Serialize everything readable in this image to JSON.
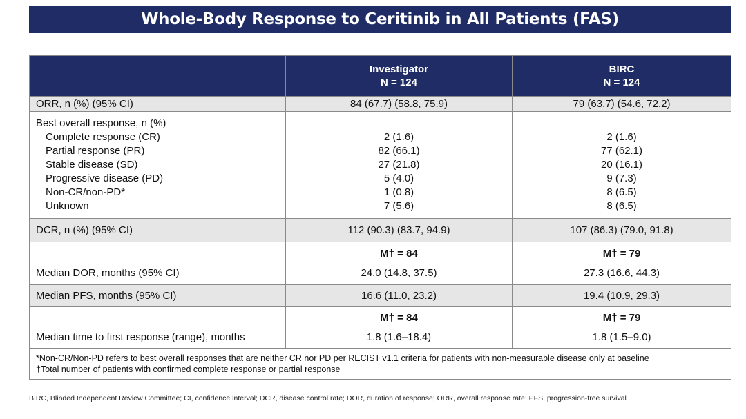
{
  "title": "Whole-Body Response to Ceritinib in All Patients (FAS)",
  "table": {
    "header": {
      "investigator": {
        "name": "Investigator",
        "n": "N = 124"
      },
      "birc": {
        "name": "BIRC",
        "n": "N = 124"
      }
    },
    "orr": {
      "label": "ORR, n (%) (95% CI)",
      "investigator": "84 (67.7) (58.8, 75.9)",
      "birc": "79 (63.7) (54.6, 72.2)"
    },
    "best_response": {
      "label": "Best overall response, n (%)",
      "items": [
        {
          "label": "Complete response (CR)",
          "investigator": "2 (1.6)",
          "birc": "2 (1.6)"
        },
        {
          "label": "Partial response (PR)",
          "investigator": "82 (66.1)",
          "birc": "77 (62.1)"
        },
        {
          "label": "Stable disease (SD)",
          "investigator": "27 (21.8)",
          "birc": "20 (16.1)"
        },
        {
          "label": "Progressive disease (PD)",
          "investigator": "5 (4.0)",
          "birc": "9 (7.3)"
        },
        {
          "label": "Non-CR/non-PD*",
          "investigator": "1 (0.8)",
          "birc": "8 (6.5)"
        },
        {
          "label": "Unknown",
          "investigator": "7 (5.6)",
          "birc": "8 (6.5)"
        }
      ]
    },
    "dcr": {
      "label": "DCR, n (%) (95% CI)",
      "investigator": "112 (90.3) (83.7, 94.9)",
      "birc": "107 (86.3) (79.0, 91.8)"
    },
    "dor": {
      "label": "Median DOR, months (95% CI)",
      "m_investigator": "M† = 84",
      "m_birc": "M† = 79",
      "investigator": "24.0 (14.8, 37.5)",
      "birc": "27.3 (16.6, 44.3)"
    },
    "pfs": {
      "label": "Median PFS, months (95% CI)",
      "investigator": "16.6 (11.0, 23.2)",
      "birc": "19.4 (10.9, 29.3)"
    },
    "ttr": {
      "label": "Median time to first response (range), months",
      "m_investigator": "M† = 84",
      "m_birc": "M† = 79",
      "investigator": "1.8 (1.6–18.4)",
      "birc": "1.8 (1.5–9.0)"
    },
    "footnotes": [
      "*Non-CR/Non-PD refers to best overall responses that are neither CR nor PD per RECIST v1.1 criteria for patients with non-measurable disease only at baseline",
      "†Total number of patients with confirmed complete response or partial response"
    ]
  },
  "abbreviations": "BIRC, Blinded Independent Review Committee; CI, confidence interval; DCR, disease control rate; DOR, duration of response; ORR, overall response rate; PFS, progression-free survival"
}
